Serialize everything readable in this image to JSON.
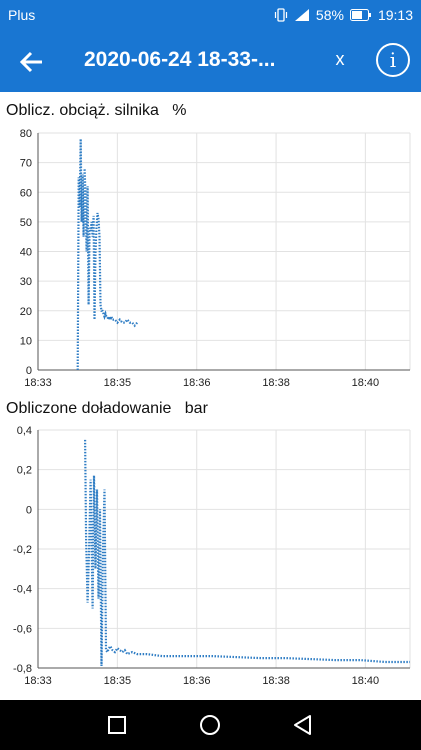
{
  "status": {
    "carrier": "Plus",
    "battery": "58%",
    "time": "19:13"
  },
  "header": {
    "title": "2020-06-24 18-33-...",
    "close_label": "x",
    "info_label": "i"
  },
  "colors": {
    "primary": "#1976d2",
    "series": "#2f7dc4",
    "grid": "#e2e2e2"
  },
  "charts": [
    {
      "title": "Oblicz. obciąż. silnika   %",
      "y_ticks": [
        "80",
        "70",
        "60",
        "50",
        "40",
        "30",
        "20",
        "10",
        "0"
      ],
      "x_ticks": [
        "18:33",
        "18:35",
        "18:36",
        "18:38",
        "18:40"
      ]
    },
    {
      "title": "Obliczone doładowanie   bar",
      "y_ticks": [
        "0,4",
        "0,2",
        "0",
        "-0,2",
        "-0,4",
        "-0,6",
        "-0,8"
      ],
      "x_ticks": [
        "18:33",
        "18:35",
        "18:36",
        "18:38",
        "18:40"
      ]
    }
  ],
  "chart_data": [
    {
      "type": "line",
      "title": "Oblicz. obciąż. silnika",
      "ylabel": "%",
      "xlim": [
        0,
        7.5
      ],
      "ylim": [
        0,
        80
      ],
      "x_tick_values": [
        0,
        1.6,
        3.2,
        4.8,
        6.6
      ],
      "x_tick_labels": [
        "18:33",
        "18:35",
        "18:36",
        "18:38",
        "18:40"
      ],
      "grid": true,
      "x": [
        0.8,
        0.82,
        0.84,
        0.86,
        0.88,
        0.9,
        0.92,
        0.94,
        0.96,
        0.98,
        1.0,
        1.02,
        1.04,
        1.06,
        1.08,
        1.1,
        1.12,
        1.14,
        1.16,
        1.18,
        1.2,
        1.22,
        1.24,
        1.26,
        1.28,
        1.3,
        1.32,
        1.34,
        1.36,
        1.38,
        1.4,
        1.42,
        1.44,
        1.46,
        1.48,
        1.5,
        1.55,
        1.6,
        1.65,
        1.7,
        1.75,
        1.8,
        1.85,
        1.9,
        1.95,
        2.0
      ],
      "y": [
        0,
        65,
        55,
        78,
        50,
        66,
        45,
        68,
        58,
        40,
        62,
        22,
        48,
        47,
        50,
        45,
        52,
        17,
        40,
        48,
        53,
        51,
        45,
        22,
        20,
        20,
        19,
        18,
        19,
        18,
        18,
        17,
        18,
        17,
        18,
        17,
        17,
        16,
        17,
        16,
        16,
        17,
        16,
        16,
        15,
        16
      ]
    },
    {
      "type": "line",
      "title": "Obliczone doładowanie",
      "ylabel": "bar",
      "xlim": [
        0,
        7.5
      ],
      "ylim": [
        -0.8,
        0.4
      ],
      "x_tick_values": [
        0,
        1.6,
        3.2,
        4.8,
        6.6
      ],
      "x_tick_labels": [
        "18:33",
        "18:35",
        "18:36",
        "18:38",
        "18:40"
      ],
      "grid": true,
      "x": [
        0.95,
        0.97,
        1.0,
        1.03,
        1.06,
        1.1,
        1.13,
        1.16,
        1.19,
        1.22,
        1.25,
        1.28,
        1.31,
        1.34,
        1.37,
        1.4,
        1.43,
        1.46,
        1.5,
        1.55,
        1.6,
        1.65,
        1.7,
        1.75,
        1.8,
        1.9,
        2.0,
        2.2,
        2.5,
        3.0,
        3.5,
        4.0,
        4.5,
        5.0,
        5.5,
        6.0,
        6.5,
        7.0,
        7.3,
        7.5
      ],
      "y": [
        0.35,
        -0.15,
        -0.47,
        -0.2,
        0.15,
        -0.5,
        0.17,
        -0.3,
        0.1,
        -0.45,
        0.0,
        -0.79,
        -0.2,
        0.1,
        -0.71,
        -0.72,
        -0.7,
        -0.69,
        -0.71,
        -0.72,
        -0.7,
        -0.71,
        -0.72,
        -0.71,
        -0.73,
        -0.72,
        -0.73,
        -0.73,
        -0.74,
        -0.74,
        -0.74,
        -0.745,
        -0.75,
        -0.75,
        -0.755,
        -0.76,
        -0.76,
        -0.77,
        -0.77,
        -0.77
      ]
    }
  ]
}
